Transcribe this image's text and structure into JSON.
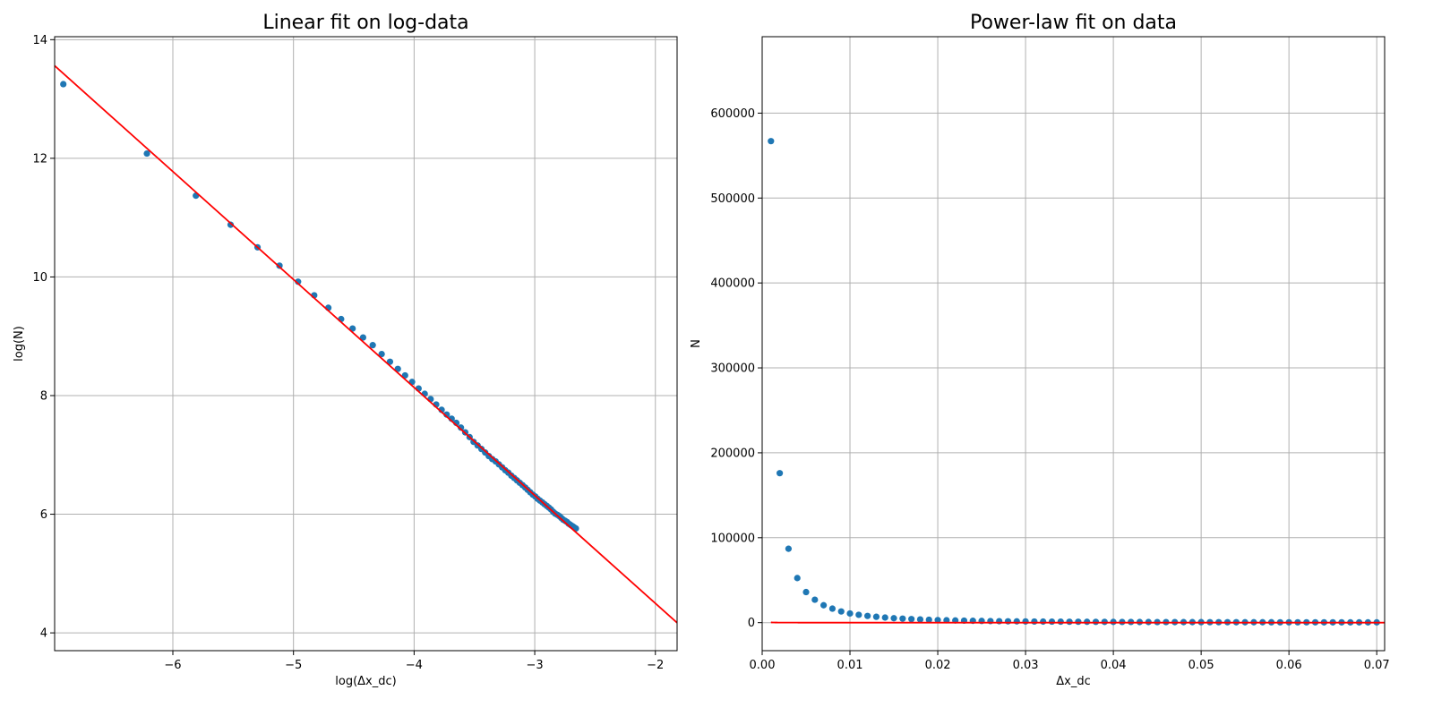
{
  "chart_data": [
    {
      "type": "scatter",
      "title": "Linear fit on log-data",
      "xlabel": "log(Δx_dc)",
      "ylabel": "log(N)",
      "xlim": [
        -6.98,
        -1.82
      ],
      "ylim": [
        3.7,
        14.05
      ],
      "xticks": [
        -6,
        -5,
        -4,
        -3,
        -2
      ],
      "xtick_labels": [
        "−6",
        "−5",
        "−4",
        "−3",
        "−2"
      ],
      "yticks": [
        4,
        6,
        8,
        10,
        12,
        14
      ],
      "ytick_labels": [
        "4",
        "6",
        "8",
        "10",
        "12",
        "14"
      ],
      "grid": true,
      "series": [
        {
          "kind": "scatter",
          "color": "#1f77b4",
          "x": [
            -6.908,
            -6.215,
            -5.809,
            -5.521,
            -5.298,
            -5.116,
            -4.962,
            -4.828,
            -4.711,
            -4.605,
            -4.51,
            -4.423,
            -4.343,
            -4.269,
            -4.2,
            -4.135,
            -4.075,
            -4.017,
            -3.963,
            -3.912,
            -3.863,
            -3.817,
            -3.772,
            -3.73,
            -3.689,
            -3.65,
            -3.612,
            -3.576,
            -3.54,
            -3.507,
            -3.474,
            -3.442,
            -3.411,
            -3.381,
            -3.352,
            -3.324,
            -3.297,
            -3.27,
            -3.244,
            -3.219,
            -3.194,
            -3.17,
            -3.147,
            -3.124,
            -3.101,
            -3.079,
            -3.058,
            -3.037,
            -3.016,
            -2.996,
            -2.976,
            -2.957,
            -2.937,
            -2.919,
            -2.9,
            -2.882,
            -2.865,
            -2.847,
            -2.83,
            -2.813,
            -2.797,
            -2.781,
            -2.765,
            -2.749,
            -2.733,
            -2.718,
            -2.703,
            -2.688,
            -2.674,
            -2.659
          ],
          "y": [
            13.25,
            12.08,
            11.37,
            10.88,
            10.5,
            10.19,
            9.92,
            9.69,
            9.48,
            9.29,
            9.13,
            8.98,
            8.85,
            8.7,
            8.57,
            8.45,
            8.34,
            8.23,
            8.12,
            8.03,
            7.94,
            7.85,
            7.76,
            7.68,
            7.61,
            7.54,
            7.46,
            7.38,
            7.3,
            7.22,
            7.16,
            7.1,
            7.04,
            6.98,
            6.93,
            6.89,
            6.84,
            6.79,
            6.74,
            6.7,
            6.65,
            6.61,
            6.57,
            6.53,
            6.49,
            6.45,
            6.41,
            6.37,
            6.33,
            6.3,
            6.26,
            6.23,
            6.2,
            6.17,
            6.14,
            6.11,
            6.08,
            6.04,
            6.01,
            5.99,
            5.97,
            5.94,
            5.91,
            5.89,
            5.87,
            5.84,
            5.82,
            5.8,
            5.78,
            5.76
          ]
        },
        {
          "kind": "line",
          "color": "#ff0000",
          "x": [
            -6.98,
            -1.82
          ],
          "y": [
            13.56,
            4.17
          ]
        }
      ]
    },
    {
      "type": "scatter",
      "title": "Power-law fit on data",
      "xlabel": "Δx_dc",
      "ylabel": "N",
      "xlim": [
        0.0,
        0.0709
      ],
      "ylim": [
        -33000,
        690000
      ],
      "xticks": [
        0.0,
        0.01,
        0.02,
        0.03,
        0.04,
        0.05,
        0.06,
        0.07
      ],
      "xtick_labels": [
        "0.00",
        "0.01",
        "0.02",
        "0.03",
        "0.04",
        "0.05",
        "0.06",
        "0.07"
      ],
      "yticks": [
        0,
        100000,
        200000,
        300000,
        400000,
        500000,
        600000
      ],
      "ytick_labels": [
        "0",
        "100000",
        "200000",
        "300000",
        "400000",
        "500000",
        "600000"
      ],
      "grid": true,
      "series": [
        {
          "kind": "scatter",
          "color": "#1f77b4",
          "x": [
            0.001,
            0.002,
            0.003,
            0.004,
            0.005,
            0.006,
            0.007,
            0.008,
            0.009,
            0.01,
            0.011,
            0.012,
            0.013,
            0.014,
            0.015,
            0.016,
            0.017,
            0.018,
            0.019,
            0.02,
            0.021,
            0.022,
            0.023,
            0.024,
            0.025,
            0.026,
            0.027,
            0.028,
            0.029,
            0.03,
            0.031,
            0.032,
            0.033,
            0.034,
            0.035,
            0.036,
            0.037,
            0.038,
            0.039,
            0.04,
            0.041,
            0.042,
            0.043,
            0.044,
            0.045,
            0.046,
            0.047,
            0.048,
            0.049,
            0.05,
            0.051,
            0.052,
            0.053,
            0.054,
            0.055,
            0.056,
            0.057,
            0.058,
            0.059,
            0.06,
            0.061,
            0.062,
            0.063,
            0.064,
            0.065,
            0.066,
            0.067,
            0.068,
            0.069,
            0.07
          ],
          "y": [
            567000,
            176000,
            87000,
            52500,
            36000,
            27000,
            20500,
            16500,
            13200,
            10800,
            9200,
            7900,
            6900,
            6000,
            5200,
            4700,
            4200,
            3800,
            3400,
            3050,
            2800,
            2570,
            2380,
            2190,
            2010,
            1850,
            1720,
            1600,
            1500,
            1420,
            1340,
            1270,
            1200,
            1140,
            1080,
            1030,
            980,
            930,
            890,
            850,
            810,
            780,
            740,
            710,
            680,
            660,
            630,
            610,
            590,
            570,
            550,
            530,
            510,
            490,
            480,
            460,
            450,
            430,
            420,
            410,
            400,
            390,
            380,
            370,
            360,
            350,
            340,
            335,
            325,
            315
          ]
        },
        {
          "kind": "curve",
          "color": "#ff0000",
          "a": 0.00136,
          "b": 1.78,
          "x_range": [
            0.001,
            0.0709
          ]
        }
      ]
    }
  ]
}
